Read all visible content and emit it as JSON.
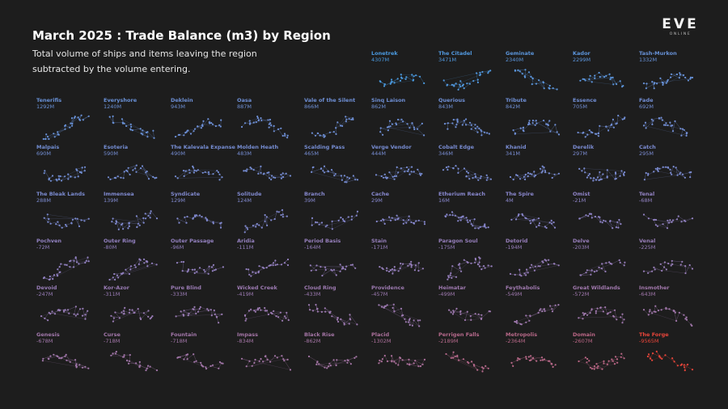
{
  "header": {
    "title": "March 2025 : Trade Balance (m3) by Region",
    "subtitle": "Total volume of ships and items leaving the region subtracted by the volume entering.",
    "logo_text": "EVE",
    "logo_subtext": "ONLINE"
  },
  "colors": {
    "background": "#1d1d1d",
    "positive": "#4a9ae0",
    "neutral": "#8c86cc",
    "negative": "#e8453a"
  },
  "chart_data": {
    "type": "small-multiples",
    "title": "March 2025 : Trade Balance (m3) by Region",
    "sort": "descending by balance",
    "regions": [
      {
        "name": "Lonetrek",
        "value": 4307,
        "label": "4307M"
      },
      {
        "name": "The Citadel",
        "value": 3471,
        "label": "3471M"
      },
      {
        "name": "Geminate",
        "value": 2340,
        "label": "2340M"
      },
      {
        "name": "Kador",
        "value": 2299,
        "label": "2299M"
      },
      {
        "name": "Tash-Murkon",
        "value": 1332,
        "label": "1332M"
      },
      {
        "name": "Tenerifis",
        "value": 1292,
        "label": "1292M"
      },
      {
        "name": "Everyshore",
        "value": 1240,
        "label": "1240M"
      },
      {
        "name": "Deklein",
        "value": 943,
        "label": "943M"
      },
      {
        "name": "Oasa",
        "value": 887,
        "label": "887M"
      },
      {
        "name": "Vale of the Silent",
        "value": 866,
        "label": "866M"
      },
      {
        "name": "Sinq Laison",
        "value": 862,
        "label": "862M"
      },
      {
        "name": "Querious",
        "value": 843,
        "label": "843M"
      },
      {
        "name": "Tribute",
        "value": 842,
        "label": "842M"
      },
      {
        "name": "Essence",
        "value": 705,
        "label": "705M"
      },
      {
        "name": "Fade",
        "value": 692,
        "label": "692M"
      },
      {
        "name": "Malpais",
        "value": 690,
        "label": "690M"
      },
      {
        "name": "Esoteria",
        "value": 590,
        "label": "590M"
      },
      {
        "name": "The Kalevala Expanse",
        "value": 490,
        "label": "490M"
      },
      {
        "name": "Molden Heath",
        "value": 483,
        "label": "483M"
      },
      {
        "name": "Scalding Pass",
        "value": 465,
        "label": "465M"
      },
      {
        "name": "Verge Vendor",
        "value": 444,
        "label": "444M"
      },
      {
        "name": "Cobalt Edge",
        "value": 346,
        "label": "346M"
      },
      {
        "name": "Khanid",
        "value": 341,
        "label": "341M"
      },
      {
        "name": "Derelik",
        "value": 297,
        "label": "297M"
      },
      {
        "name": "Catch",
        "value": 295,
        "label": "295M"
      },
      {
        "name": "The Bleak Lands",
        "value": 288,
        "label": "288M"
      },
      {
        "name": "Immensea",
        "value": 139,
        "label": "139M"
      },
      {
        "name": "Syndicate",
        "value": 129,
        "label": "129M"
      },
      {
        "name": "Solitude",
        "value": 124,
        "label": "124M"
      },
      {
        "name": "Branch",
        "value": 39,
        "label": "39M"
      },
      {
        "name": "Cache",
        "value": 29,
        "label": "29M"
      },
      {
        "name": "Etherium Reach",
        "value": 16,
        "label": "16M"
      },
      {
        "name": "The Spire",
        "value": 4,
        "label": "4M"
      },
      {
        "name": "Omist",
        "value": -21,
        "label": "-21M"
      },
      {
        "name": "Tenal",
        "value": -68,
        "label": "-68M"
      },
      {
        "name": "Pochven",
        "value": -72,
        "label": "-72M"
      },
      {
        "name": "Outer Ring",
        "value": -80,
        "label": "-80M"
      },
      {
        "name": "Outer Passage",
        "value": -96,
        "label": "-96M"
      },
      {
        "name": "Aridia",
        "value": -111,
        "label": "-111M"
      },
      {
        "name": "Period Basis",
        "value": -164,
        "label": "-164M"
      },
      {
        "name": "Stain",
        "value": -171,
        "label": "-171M"
      },
      {
        "name": "Paragon Soul",
        "value": -175,
        "label": "-175M"
      },
      {
        "name": "Detorid",
        "value": -194,
        "label": "-194M"
      },
      {
        "name": "Delve",
        "value": -203,
        "label": "-203M"
      },
      {
        "name": "Venal",
        "value": -225,
        "label": "-225M"
      },
      {
        "name": "Devoid",
        "value": -247,
        "label": "-247M"
      },
      {
        "name": "Kor-Azor",
        "value": -311,
        "label": "-311M"
      },
      {
        "name": "Pure Blind",
        "value": -333,
        "label": "-333M"
      },
      {
        "name": "Wicked Creek",
        "value": -419,
        "label": "-419M"
      },
      {
        "name": "Cloud Ring",
        "value": -433,
        "label": "-433M"
      },
      {
        "name": "Providence",
        "value": -457,
        "label": "-457M"
      },
      {
        "name": "Heimatar",
        "value": -499,
        "label": "-499M"
      },
      {
        "name": "Feythabolis",
        "value": -549,
        "label": "-549M"
      },
      {
        "name": "Great Wildlands",
        "value": -572,
        "label": "-572M"
      },
      {
        "name": "Insmother",
        "value": -643,
        "label": "-643M"
      },
      {
        "name": "Genesis",
        "value": -678,
        "label": "-678M"
      },
      {
        "name": "Curse",
        "value": -718,
        "label": "-718M"
      },
      {
        "name": "Fountain",
        "value": -718,
        "label": "-718M"
      },
      {
        "name": "Impass",
        "value": -834,
        "label": "-834M"
      },
      {
        "name": "Black Rise",
        "value": -862,
        "label": "-862M"
      },
      {
        "name": "Placid",
        "value": -1302,
        "label": "-1302M"
      },
      {
        "name": "Perrigen Falls",
        "value": -2189,
        "label": "-2189M"
      },
      {
        "name": "Metropolis",
        "value": -2364,
        "label": "-2364M"
      },
      {
        "name": "Domain",
        "value": -2607,
        "label": "-2607M"
      },
      {
        "name": "The Forge",
        "value": -9565,
        "label": "-9565M"
      }
    ]
  }
}
